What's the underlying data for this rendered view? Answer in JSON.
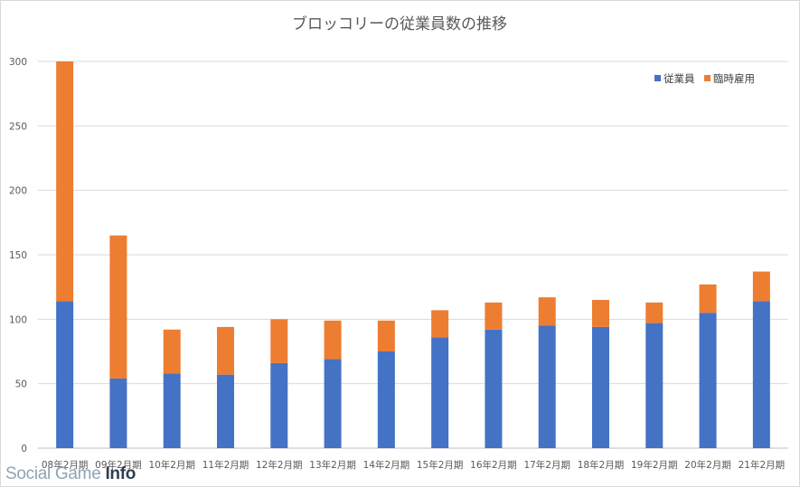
{
  "chart_data": {
    "type": "bar",
    "stacked": true,
    "title": "ブロッコリーの従業員数の推移",
    "categories": [
      "08年2月期",
      "09年2月期",
      "10年2月期",
      "11年2月期",
      "12年2月期",
      "13年2月期",
      "14年2月期",
      "15年2月期",
      "16年2月期",
      "17年2月期",
      "18年2月期",
      "19年2月期",
      "20年2月期",
      "21年2月期"
    ],
    "series": [
      {
        "name": "従業員",
        "color": "#4472c4",
        "values": [
          114,
          54,
          58,
          57,
          66,
          69,
          75,
          86,
          92,
          95,
          94,
          97,
          105,
          114
        ]
      },
      {
        "name": "臨時雇用",
        "color": "#ed7d31",
        "values": [
          186,
          111,
          34,
          37,
          34,
          30,
          24,
          21,
          21,
          22,
          21,
          16,
          22,
          23
        ]
      }
    ],
    "ylim": [
      0,
      300
    ],
    "yticks": [
      0,
      50,
      100,
      150,
      200,
      250,
      300
    ],
    "grid": true,
    "legend_position": "top-right"
  },
  "watermark": {
    "part1": "Social Game ",
    "part2": "Info"
  }
}
